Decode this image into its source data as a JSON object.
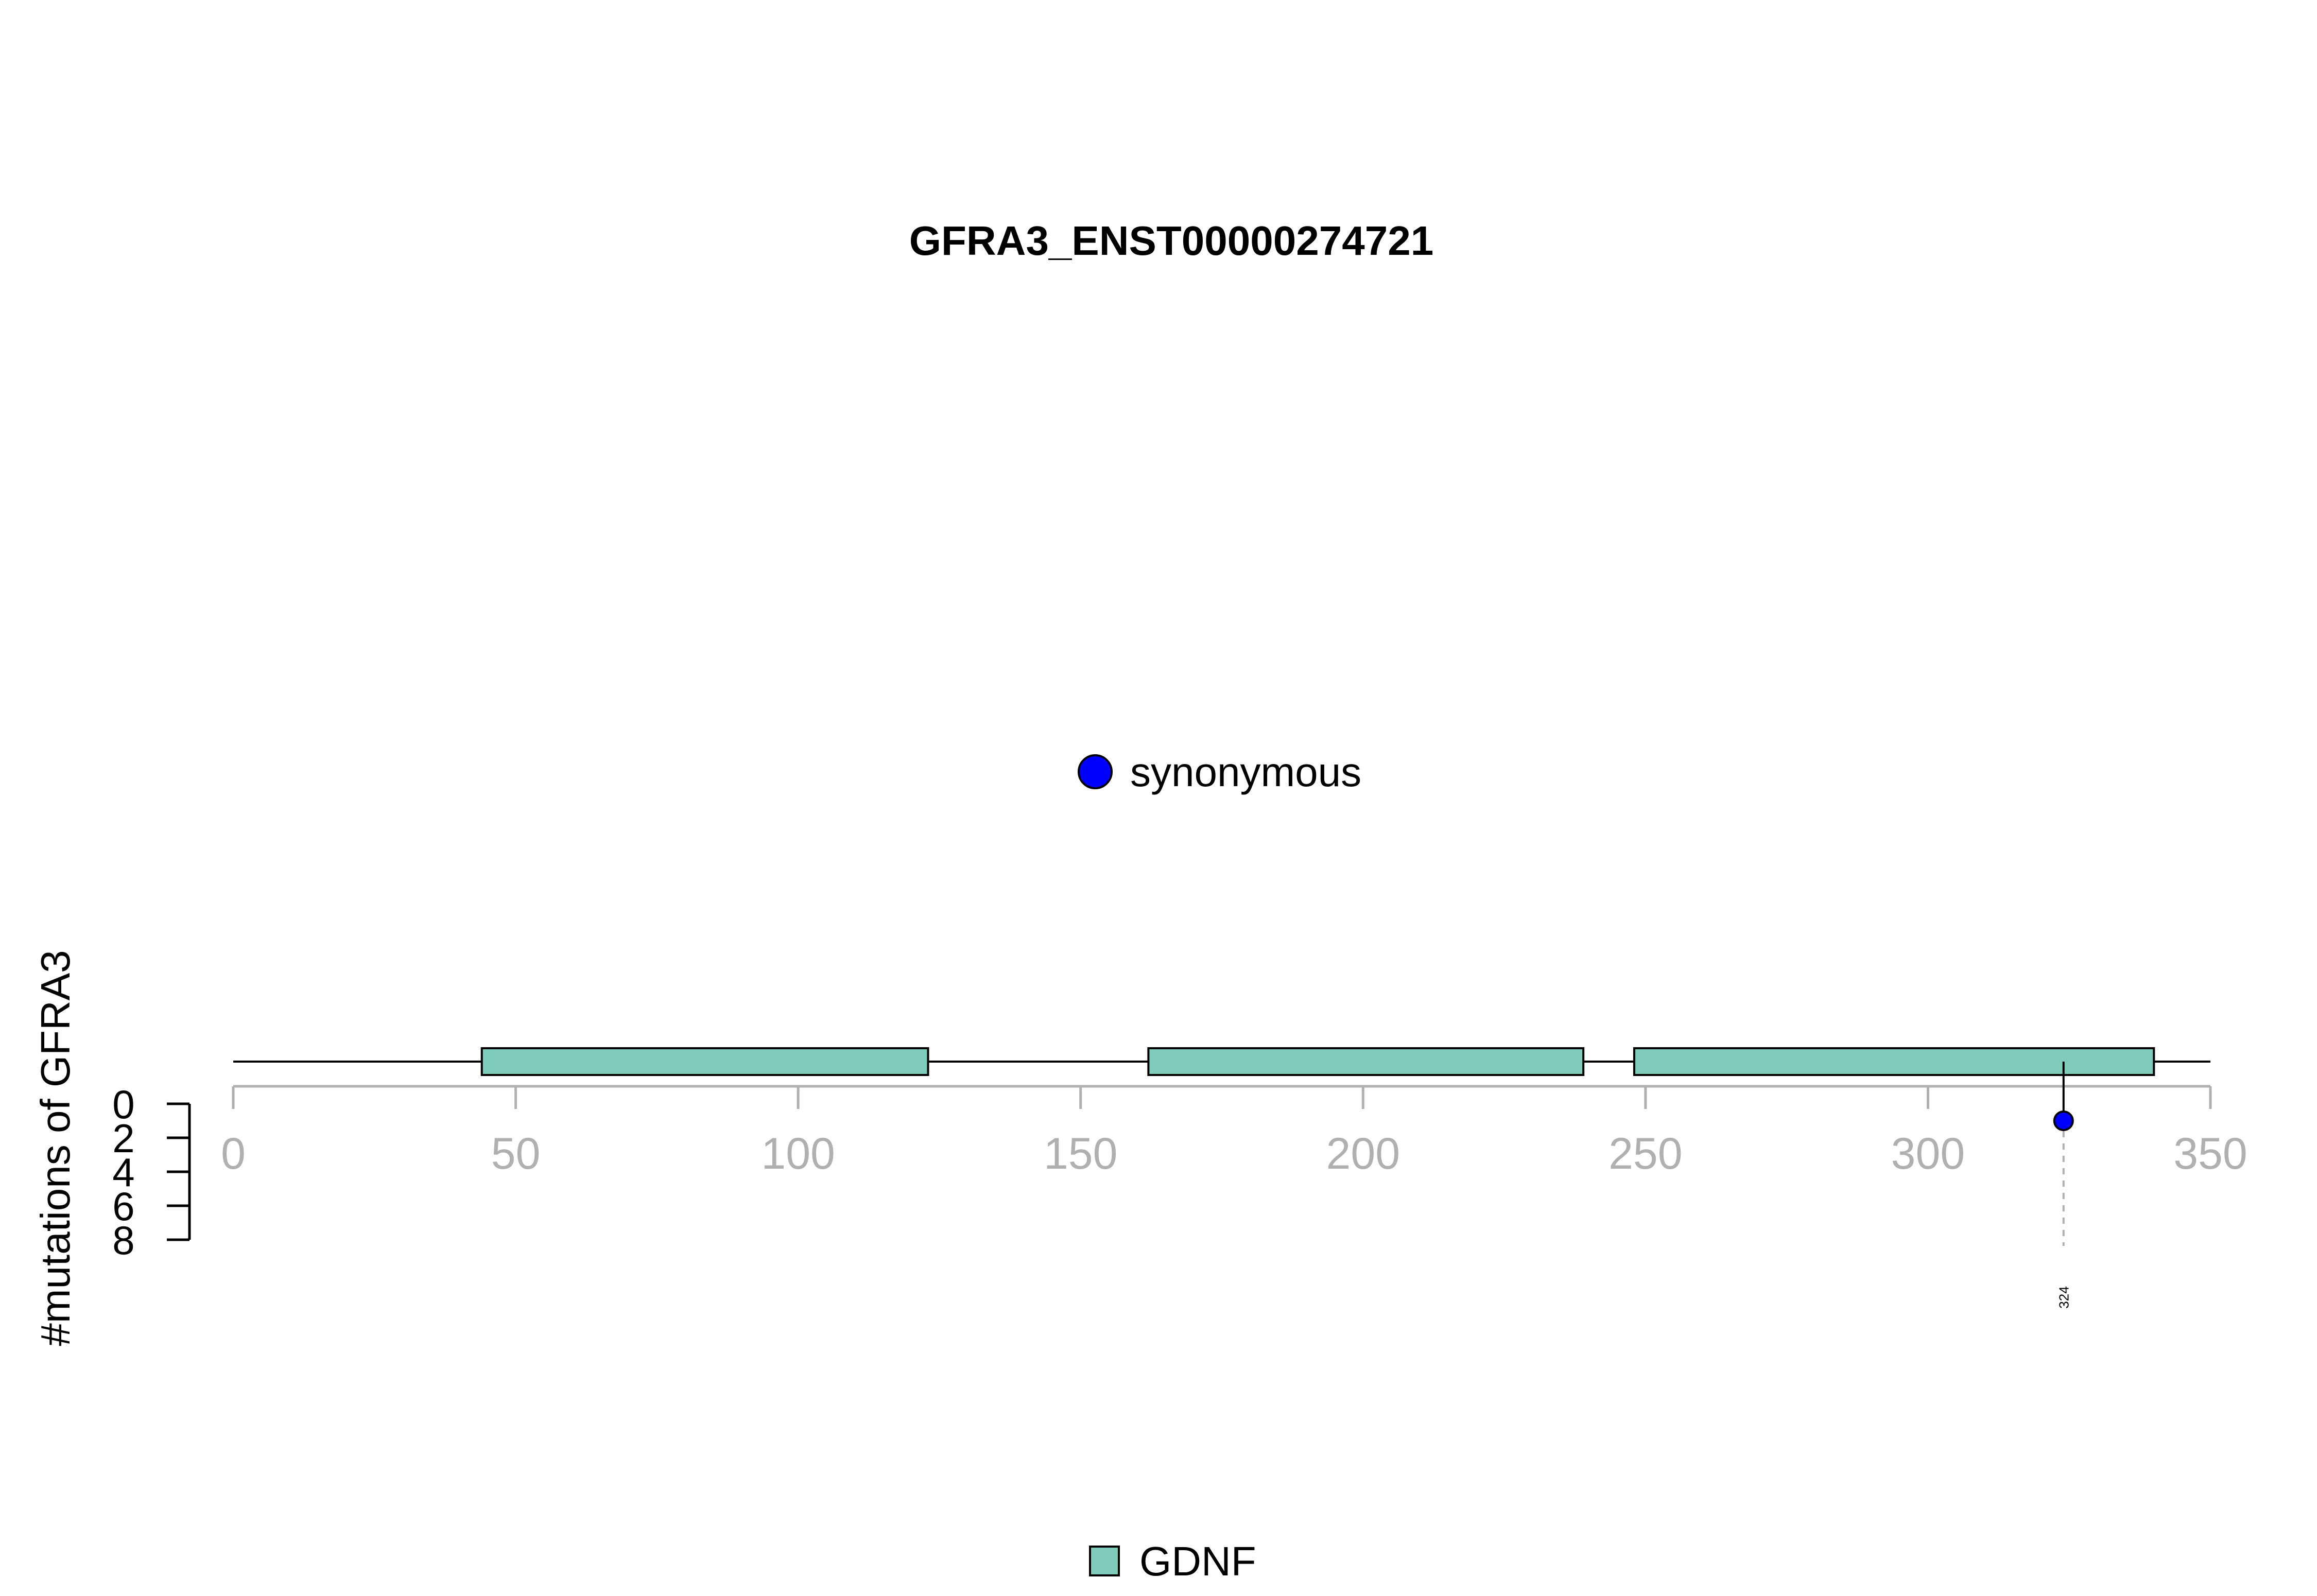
{
  "chart_data": {
    "type": "lollipop",
    "title": "GFRA3_ENST00000274721",
    "ylabel": "#mutations of GFRA3",
    "protein_length": 350,
    "xlim": [
      0,
      350
    ],
    "x_ticks": [
      0,
      50,
      100,
      150,
      200,
      250,
      300,
      350
    ],
    "ylim": [
      0,
      8
    ],
    "y_ticks": [
      0,
      2,
      4,
      6,
      8
    ],
    "domains": [
      {
        "name": "GDNF",
        "start": 44,
        "end": 123,
        "color": "#7fccbb"
      },
      {
        "name": "GDNF",
        "start": 162,
        "end": 239,
        "color": "#7fccbb"
      },
      {
        "name": "GDNF",
        "start": 248,
        "end": 340,
        "color": "#7fccbb"
      }
    ],
    "mutations": [
      {
        "position": 324,
        "count": 1,
        "type": "synonymous",
        "label": "324",
        "color": "#0000ff"
      }
    ],
    "mutation_legend": [
      {
        "label": "synonymous",
        "color": "#0000ff"
      }
    ],
    "domain_legend": [
      {
        "label": "GDNF",
        "color": "#7fccbb"
      }
    ]
  }
}
